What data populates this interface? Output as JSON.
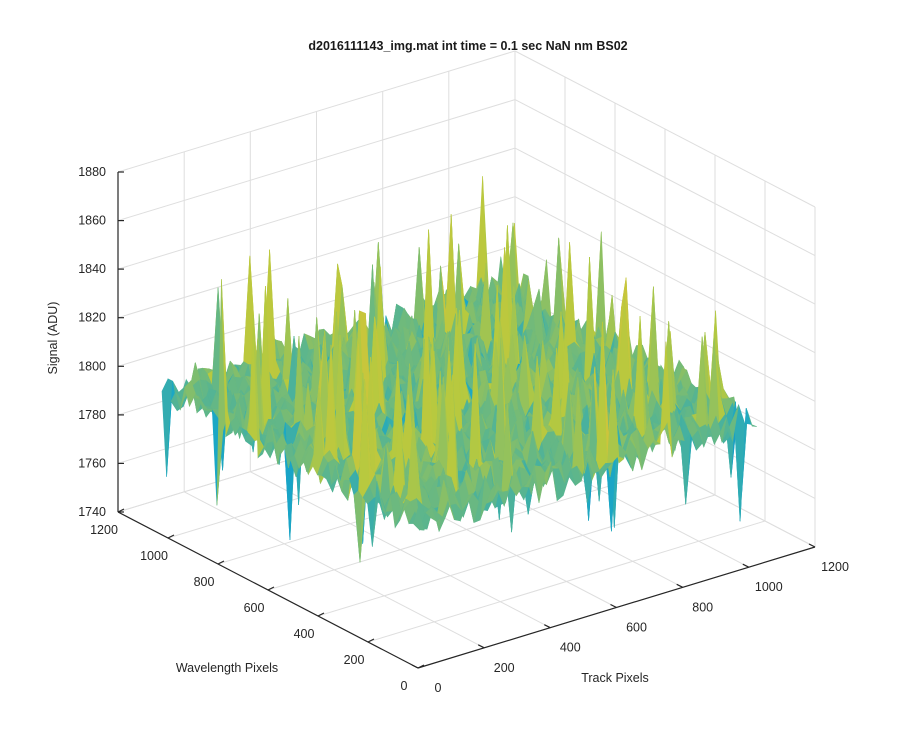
{
  "chart_data": {
    "type": "surface",
    "title": "d2016111143_img.mat int time = 0.1 sec  NaN nm BS02",
    "xlabel": "Track Pixels",
    "ylabel": "Wavelength Pixels",
    "zlabel": "Signal (ADU)",
    "xlim": [
      0,
      1200
    ],
    "ylim": [
      0,
      1200
    ],
    "zlim": [
      1740,
      1880
    ],
    "xticks": [
      "0",
      "200",
      "400",
      "600",
      "800",
      "1000",
      "1200"
    ],
    "yticks": [
      "0",
      "200",
      "400",
      "600",
      "800",
      "1000",
      "1200"
    ],
    "zticks": [
      "1740",
      "1760",
      "1780",
      "1800",
      "1820",
      "1840",
      "1860",
      "1880"
    ],
    "grid": true,
    "colormap": "parula",
    "surface_extent": {
      "x": [
        0,
        1024
      ],
      "y": [
        0,
        1024
      ]
    },
    "signal_mean_approx": 1800,
    "signal_range_approx": [
      1755,
      1865
    ],
    "colors": {
      "low": "#0f5fd8",
      "mid": "#1aa7c6",
      "high": "#b6c93f",
      "peak": "#d8c33a"
    }
  }
}
